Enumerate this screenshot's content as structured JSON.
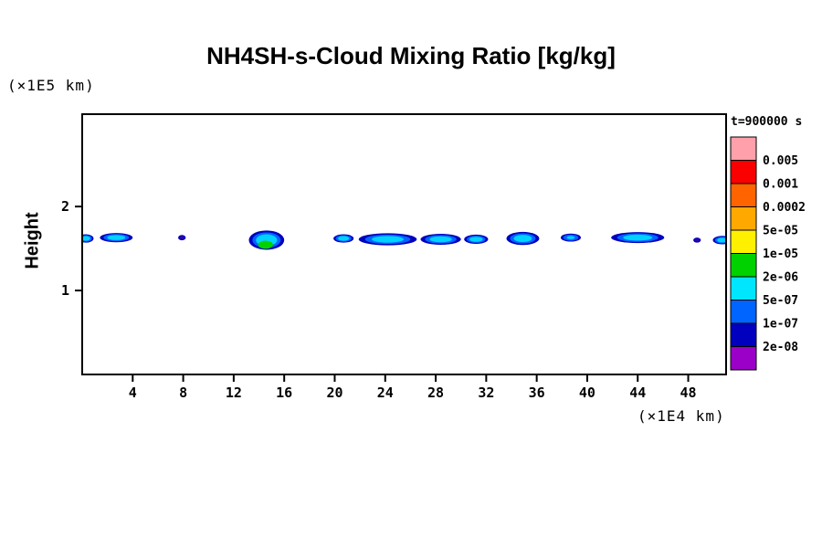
{
  "chart_data": {
    "type": "contour",
    "title": "NH4SH-s-Cloud Mixing Ratio [kg/kg]",
    "ylabel": "Height",
    "y_unit_label": "(×1E5 km)",
    "x_unit_label": "(×1E4 km)",
    "xlim": [
      0,
      51
    ],
    "ylim": [
      0,
      3.1
    ],
    "x_ticks": [
      4,
      8,
      12,
      16,
      20,
      24,
      28,
      32,
      36,
      40,
      44,
      48
    ],
    "y_ticks": [
      1,
      2
    ],
    "grid": false,
    "legend": {
      "title": "t=900000 s",
      "position": "right",
      "levels": [
        "0.005",
        "0.001",
        "0.0002",
        "5e-05",
        "1e-05",
        "2e-06",
        "5e-07",
        "1e-07",
        "2e-08"
      ],
      "colors": [
        "#ffa0aa",
        "#fa0000",
        "#ff6400",
        "#ffa800",
        "#fff000",
        "#00d200",
        "#00e6ff",
        "#0064ff",
        "#0000be",
        "#9b00c8"
      ]
    },
    "profiles": {
      "cyan": [
        {
          "color": "#0000be",
          "s": 1.0
        },
        {
          "color": "#0064ff",
          "s": 0.78
        },
        {
          "color": "#00d2ff",
          "s": 0.55
        }
      ],
      "smallcyan": [
        {
          "color": "#0000be",
          "s": 1.0
        },
        {
          "color": "#0064ff",
          "s": 0.75
        },
        {
          "color": "#00d2ff",
          "s": 0.4
        }
      ],
      "dark": [
        {
          "color": "#0000be",
          "s": 1.0
        },
        {
          "color": "#3200aa",
          "s": 0.6
        }
      ],
      "green": [
        {
          "color": "#0000be",
          "s": 1.0
        },
        {
          "color": "#0064ff",
          "s": 0.8
        },
        {
          "color": "#00d2ff",
          "s": 0.6
        },
        {
          "color": "#00d200",
          "s": 0.42,
          "dx": -0.08,
          "dy": -0.055
        }
      ]
    },
    "clouds": [
      {
        "x": 0.3,
        "y": 1.62,
        "rx": 0.6,
        "ry": 0.05,
        "profile": "cyan"
      },
      {
        "x": 2.7,
        "y": 1.63,
        "rx": 1.3,
        "ry": 0.055,
        "profile": "cyan"
      },
      {
        "x": 7.9,
        "y": 1.63,
        "rx": 0.3,
        "ry": 0.032,
        "profile": "dark"
      },
      {
        "x": 14.6,
        "y": 1.6,
        "rx": 1.4,
        "ry": 0.115,
        "profile": "green"
      },
      {
        "x": 20.7,
        "y": 1.62,
        "rx": 0.8,
        "ry": 0.05,
        "profile": "cyan"
      },
      {
        "x": 24.2,
        "y": 1.61,
        "rx": 2.3,
        "ry": 0.072,
        "profile": "cyan"
      },
      {
        "x": 28.4,
        "y": 1.61,
        "rx": 1.6,
        "ry": 0.065,
        "profile": "cyan"
      },
      {
        "x": 31.2,
        "y": 1.61,
        "rx": 0.95,
        "ry": 0.055,
        "profile": "cyan"
      },
      {
        "x": 34.9,
        "y": 1.62,
        "rx": 1.3,
        "ry": 0.078,
        "profile": "cyan"
      },
      {
        "x": 38.7,
        "y": 1.63,
        "rx": 0.8,
        "ry": 0.048,
        "profile": "smallcyan"
      },
      {
        "x": 44.0,
        "y": 1.63,
        "rx": 2.1,
        "ry": 0.065,
        "profile": "cyan"
      },
      {
        "x": 48.7,
        "y": 1.6,
        "rx": 0.3,
        "ry": 0.03,
        "profile": "dark"
      },
      {
        "x": 50.7,
        "y": 1.6,
        "rx": 0.75,
        "ry": 0.05,
        "profile": "cyan"
      }
    ]
  }
}
